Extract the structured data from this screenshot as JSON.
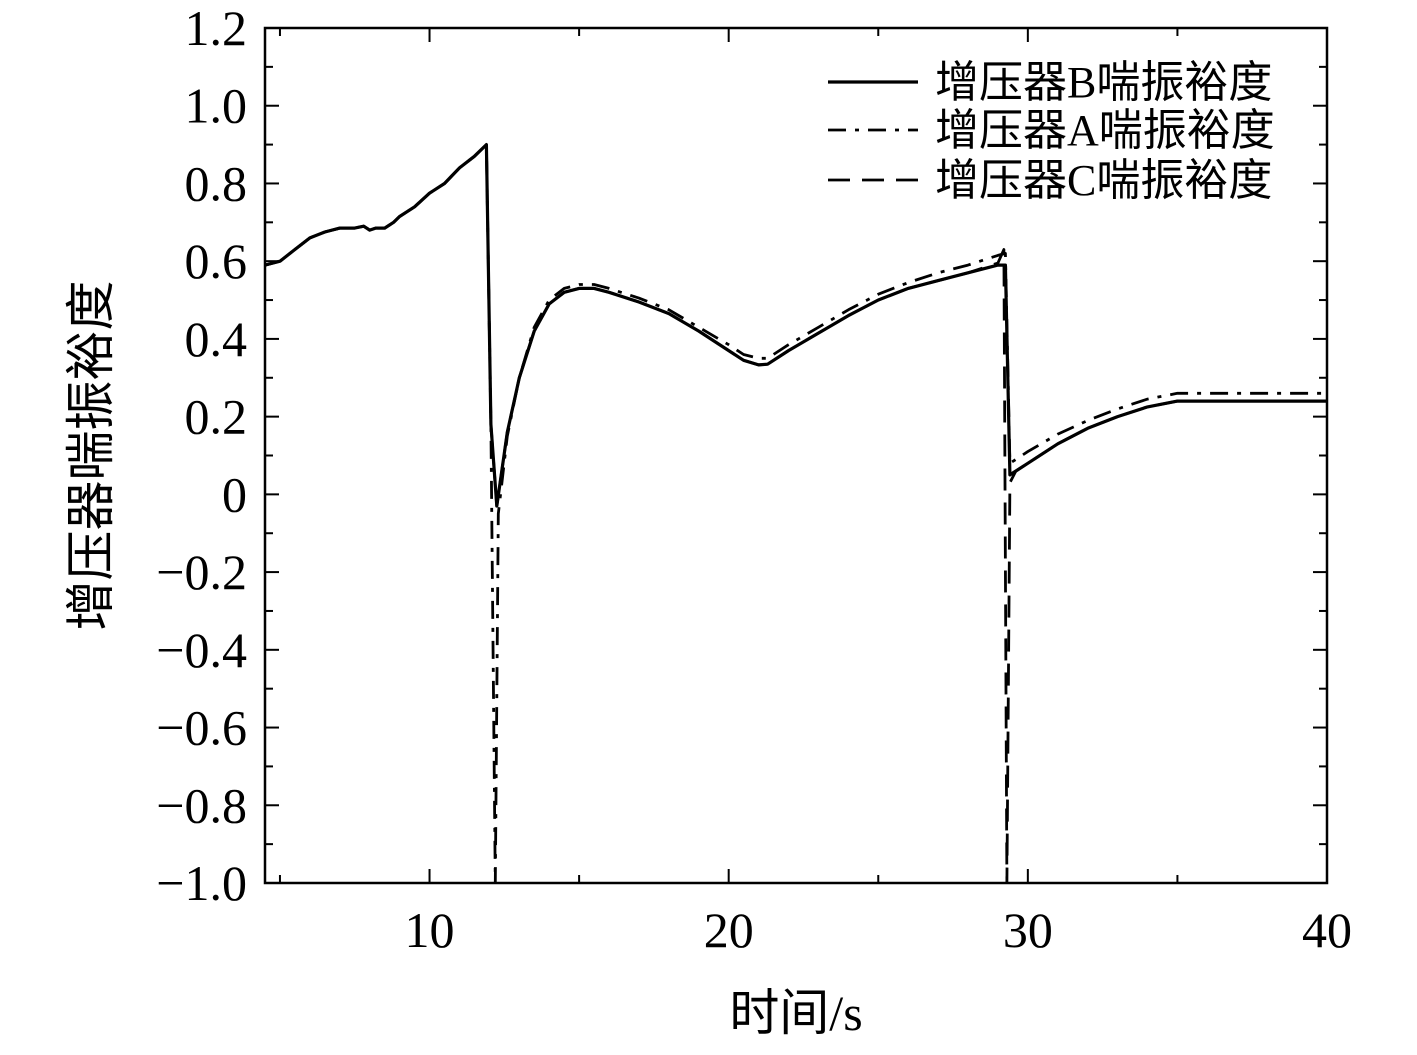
{
  "chart_data": {
    "type": "line",
    "title": "",
    "xlabel": "时间/s",
    "ylabel": "增压器喘振裕度",
    "xlim": [
      4.5,
      40
    ],
    "ylim": [
      -1.0,
      1.2
    ],
    "x_ticks": [
      10,
      20,
      30,
      40
    ],
    "x_tick_labels": [
      "10",
      "20",
      "30",
      "40"
    ],
    "y_ticks": [
      1.2,
      1.0,
      0.8,
      0.6,
      0.4,
      0.2,
      0,
      -0.2,
      -0.4,
      -0.6,
      -0.8,
      -1.0
    ],
    "y_tick_labels": [
      "1.2",
      "1.0",
      "0.8",
      "0.6",
      "0.4",
      "0.2",
      "0",
      "−0.2",
      "−0.4",
      "−0.6",
      "−0.8",
      "−1.0"
    ],
    "grid": false,
    "legend_position": "top-right",
    "series": [
      {
        "name": "增压器B喘振裕度",
        "style": "solid",
        "color": "#000000",
        "points": [
          [
            4.5,
            0.59
          ],
          [
            5,
            0.6
          ],
          [
            5.5,
            0.63
          ],
          [
            6,
            0.66
          ],
          [
            6.5,
            0.675
          ],
          [
            7,
            0.685
          ],
          [
            7.5,
            0.685
          ],
          [
            7.8,
            0.69
          ],
          [
            8,
            0.68
          ],
          [
            8.2,
            0.685
          ],
          [
            8.5,
            0.685
          ],
          [
            8.8,
            0.7
          ],
          [
            9,
            0.715
          ],
          [
            9.5,
            0.74
          ],
          [
            10,
            0.775
          ],
          [
            10.5,
            0.8
          ],
          [
            11,
            0.84
          ],
          [
            11.5,
            0.87
          ],
          [
            11.9,
            0.9
          ],
          [
            12.05,
            0.18
          ],
          [
            12.25,
            -0.03
          ],
          [
            12.6,
            0.16
          ],
          [
            13,
            0.3
          ],
          [
            13.5,
            0.42
          ],
          [
            14,
            0.49
          ],
          [
            14.5,
            0.52
          ],
          [
            15,
            0.53
          ],
          [
            15.5,
            0.53
          ],
          [
            16,
            0.52
          ],
          [
            17,
            0.495
          ],
          [
            18,
            0.465
          ],
          [
            19,
            0.42
          ],
          [
            20,
            0.37
          ],
          [
            20.5,
            0.345
          ],
          [
            21,
            0.333
          ],
          [
            21.3,
            0.335
          ],
          [
            22,
            0.37
          ],
          [
            23,
            0.415
          ],
          [
            24,
            0.46
          ],
          [
            25,
            0.5
          ],
          [
            26,
            0.53
          ],
          [
            27,
            0.55
          ],
          [
            28,
            0.57
          ],
          [
            29,
            0.59
          ],
          [
            29.25,
            0.59
          ],
          [
            29.4,
            0.05
          ],
          [
            29.6,
            0.06
          ],
          [
            30,
            0.08
          ],
          [
            31,
            0.13
          ],
          [
            32,
            0.17
          ],
          [
            33,
            0.2
          ],
          [
            34,
            0.225
          ],
          [
            35,
            0.24
          ],
          [
            36,
            0.24
          ],
          [
            37,
            0.24
          ],
          [
            38,
            0.24
          ],
          [
            39,
            0.24
          ],
          [
            40,
            0.24
          ]
        ]
      },
      {
        "name": "增压器A喘振裕度",
        "style": "dashdot",
        "color": "#000000",
        "points": [
          [
            4.5,
            0.59
          ],
          [
            5,
            0.6
          ],
          [
            5.5,
            0.63
          ],
          [
            6,
            0.66
          ],
          [
            6.5,
            0.675
          ],
          [
            7,
            0.685
          ],
          [
            7.5,
            0.685
          ],
          [
            7.8,
            0.69
          ],
          [
            8,
            0.68
          ],
          [
            8.2,
            0.685
          ],
          [
            8.5,
            0.685
          ],
          [
            8.8,
            0.7
          ],
          [
            9,
            0.715
          ],
          [
            9.5,
            0.74
          ],
          [
            10,
            0.775
          ],
          [
            10.5,
            0.8
          ],
          [
            11,
            0.84
          ],
          [
            11.5,
            0.87
          ],
          [
            11.9,
            0.9
          ],
          [
            12.05,
            0.18
          ],
          [
            12.2,
            -1.0
          ],
          [
            12.3,
            -0.05
          ],
          [
            12.6,
            0.15
          ],
          [
            13,
            0.3
          ],
          [
            13.5,
            0.43
          ],
          [
            14,
            0.5
          ],
          [
            14.5,
            0.53
          ],
          [
            15,
            0.54
          ],
          [
            15.5,
            0.54
          ],
          [
            16,
            0.53
          ],
          [
            17,
            0.505
          ],
          [
            18,
            0.475
          ],
          [
            19,
            0.43
          ],
          [
            20,
            0.385
          ],
          [
            20.5,
            0.36
          ],
          [
            21,
            0.35
          ],
          [
            21.3,
            0.35
          ],
          [
            22,
            0.385
          ],
          [
            23,
            0.43
          ],
          [
            24,
            0.475
          ],
          [
            25,
            0.515
          ],
          [
            26,
            0.545
          ],
          [
            27,
            0.57
          ],
          [
            28,
            0.59
          ],
          [
            29,
            0.615
          ],
          [
            29.25,
            0.62
          ],
          [
            29.4,
            0.08
          ],
          [
            29.6,
            0.09
          ],
          [
            30,
            0.11
          ],
          [
            31,
            0.155
          ],
          [
            32,
            0.19
          ],
          [
            33,
            0.22
          ],
          [
            34,
            0.245
          ],
          [
            35,
            0.26
          ],
          [
            36,
            0.26
          ],
          [
            37,
            0.26
          ],
          [
            38,
            0.26
          ],
          [
            39,
            0.26
          ],
          [
            40,
            0.26
          ]
        ]
      },
      {
        "name": "增压器C喘振裕度",
        "style": "dashed",
        "color": "#000000",
        "points": [
          [
            4.5,
            0.59
          ],
          [
            5,
            0.6
          ],
          [
            5.5,
            0.63
          ],
          [
            6,
            0.66
          ],
          [
            6.5,
            0.675
          ],
          [
            7,
            0.685
          ],
          [
            7.5,
            0.685
          ],
          [
            7.8,
            0.69
          ],
          [
            8,
            0.68
          ],
          [
            8.2,
            0.685
          ],
          [
            8.5,
            0.685
          ],
          [
            8.8,
            0.7
          ],
          [
            9,
            0.715
          ],
          [
            9.5,
            0.74
          ],
          [
            10,
            0.775
          ],
          [
            10.5,
            0.8
          ],
          [
            11,
            0.84
          ],
          [
            11.5,
            0.87
          ],
          [
            11.9,
            0.9
          ],
          [
            12.05,
            0.18
          ],
          [
            12.25,
            -0.03
          ],
          [
            12.6,
            0.16
          ],
          [
            13,
            0.3
          ],
          [
            13.5,
            0.42
          ],
          [
            14,
            0.49
          ],
          [
            14.5,
            0.52
          ],
          [
            15,
            0.53
          ],
          [
            15.5,
            0.53
          ],
          [
            16,
            0.52
          ],
          [
            17,
            0.495
          ],
          [
            18,
            0.465
          ],
          [
            19,
            0.42
          ],
          [
            20,
            0.37
          ],
          [
            20.5,
            0.345
          ],
          [
            21,
            0.333
          ],
          [
            21.3,
            0.335
          ],
          [
            22,
            0.37
          ],
          [
            23,
            0.415
          ],
          [
            24,
            0.46
          ],
          [
            25,
            0.5
          ],
          [
            26,
            0.53
          ],
          [
            27,
            0.55
          ],
          [
            28,
            0.57
          ],
          [
            29,
            0.595
          ],
          [
            29.2,
            0.63
          ],
          [
            29.3,
            -1.0
          ],
          [
            29.4,
            0.03
          ],
          [
            29.6,
            0.06
          ],
          [
            30,
            0.08
          ],
          [
            31,
            0.13
          ],
          [
            32,
            0.17
          ],
          [
            33,
            0.2
          ],
          [
            34,
            0.225
          ],
          [
            35,
            0.24
          ],
          [
            36,
            0.24
          ],
          [
            37,
            0.24
          ],
          [
            38,
            0.24
          ],
          [
            39,
            0.24
          ],
          [
            40,
            0.24
          ]
        ]
      }
    ]
  }
}
